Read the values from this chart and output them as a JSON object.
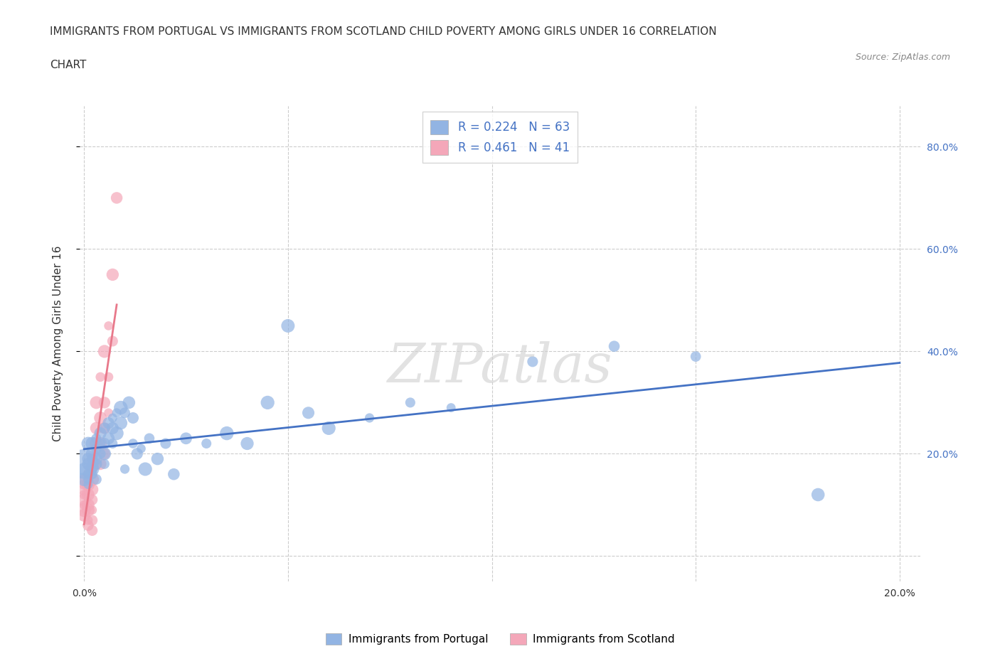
{
  "title_line1": "IMMIGRANTS FROM PORTUGAL VS IMMIGRANTS FROM SCOTLAND CHILD POVERTY AMONG GIRLS UNDER 16 CORRELATION",
  "title_line2": "CHART",
  "source": "Source: ZipAtlas.com",
  "ylabel": "Child Poverty Among Girls Under 16",
  "xlim": [
    -0.001,
    0.205
  ],
  "ylim": [
    -0.05,
    0.88
  ],
  "xticks": [
    0.0,
    0.05,
    0.1,
    0.15,
    0.2
  ],
  "yticks": [
    0.0,
    0.2,
    0.4,
    0.6,
    0.8
  ],
  "R_portugal": 0.224,
  "N_portugal": 63,
  "R_scotland": 0.461,
  "N_scotland": 41,
  "color_portugal": "#92b4e3",
  "color_scotland": "#f4a7b9",
  "line_color_portugal": "#4472c4",
  "line_color_scotland": "#e8788a",
  "legend_color_text": "#4472c4",
  "watermark": "ZIPatlas",
  "background_color": "#ffffff",
  "portugal_scatter": [
    [
      0.0,
      0.18
    ],
    [
      0.0,
      0.15
    ],
    [
      0.0,
      0.17
    ],
    [
      0.001,
      0.19
    ],
    [
      0.001,
      0.16
    ],
    [
      0.001,
      0.15
    ],
    [
      0.001,
      0.14
    ],
    [
      0.001,
      0.22
    ],
    [
      0.001,
      0.18
    ],
    [
      0.002,
      0.2
    ],
    [
      0.002,
      0.18
    ],
    [
      0.002,
      0.17
    ],
    [
      0.002,
      0.22
    ],
    [
      0.002,
      0.19
    ],
    [
      0.002,
      0.16
    ],
    [
      0.003,
      0.23
    ],
    [
      0.003,
      0.21
    ],
    [
      0.003,
      0.19
    ],
    [
      0.003,
      0.18
    ],
    [
      0.003,
      0.15
    ],
    [
      0.004,
      0.24
    ],
    [
      0.004,
      0.22
    ],
    [
      0.004,
      0.2
    ],
    [
      0.005,
      0.25
    ],
    [
      0.005,
      0.22
    ],
    [
      0.005,
      0.2
    ],
    [
      0.005,
      0.18
    ],
    [
      0.006,
      0.26
    ],
    [
      0.006,
      0.23
    ],
    [
      0.007,
      0.27
    ],
    [
      0.007,
      0.25
    ],
    [
      0.007,
      0.22
    ],
    [
      0.008,
      0.28
    ],
    [
      0.008,
      0.24
    ],
    [
      0.009,
      0.29
    ],
    [
      0.009,
      0.26
    ],
    [
      0.01,
      0.28
    ],
    [
      0.01,
      0.17
    ],
    [
      0.011,
      0.3
    ],
    [
      0.012,
      0.27
    ],
    [
      0.012,
      0.22
    ],
    [
      0.013,
      0.2
    ],
    [
      0.014,
      0.21
    ],
    [
      0.015,
      0.17
    ],
    [
      0.016,
      0.23
    ],
    [
      0.018,
      0.19
    ],
    [
      0.02,
      0.22
    ],
    [
      0.022,
      0.16
    ],
    [
      0.025,
      0.23
    ],
    [
      0.03,
      0.22
    ],
    [
      0.035,
      0.24
    ],
    [
      0.04,
      0.22
    ],
    [
      0.045,
      0.3
    ],
    [
      0.05,
      0.45
    ],
    [
      0.055,
      0.28
    ],
    [
      0.06,
      0.25
    ],
    [
      0.07,
      0.27
    ],
    [
      0.08,
      0.3
    ],
    [
      0.09,
      0.29
    ],
    [
      0.11,
      0.38
    ],
    [
      0.13,
      0.41
    ],
    [
      0.15,
      0.39
    ],
    [
      0.18,
      0.12
    ]
  ],
  "scotland_scatter": [
    [
      0.0,
      0.15
    ],
    [
      0.0,
      0.14
    ],
    [
      0.0,
      0.13
    ],
    [
      0.0,
      0.12
    ],
    [
      0.0,
      0.11
    ],
    [
      0.0,
      0.1
    ],
    [
      0.0,
      0.09
    ],
    [
      0.0,
      0.08
    ],
    [
      0.001,
      0.16
    ],
    [
      0.001,
      0.15
    ],
    [
      0.001,
      0.14
    ],
    [
      0.001,
      0.12
    ],
    [
      0.001,
      0.1
    ],
    [
      0.001,
      0.09
    ],
    [
      0.001,
      0.07
    ],
    [
      0.001,
      0.06
    ],
    [
      0.002,
      0.17
    ],
    [
      0.002,
      0.15
    ],
    [
      0.002,
      0.13
    ],
    [
      0.002,
      0.11
    ],
    [
      0.002,
      0.09
    ],
    [
      0.002,
      0.07
    ],
    [
      0.002,
      0.05
    ],
    [
      0.003,
      0.3
    ],
    [
      0.003,
      0.25
    ],
    [
      0.003,
      0.22
    ],
    [
      0.003,
      0.18
    ],
    [
      0.004,
      0.35
    ],
    [
      0.004,
      0.27
    ],
    [
      0.004,
      0.22
    ],
    [
      0.004,
      0.18
    ],
    [
      0.005,
      0.4
    ],
    [
      0.005,
      0.3
    ],
    [
      0.005,
      0.25
    ],
    [
      0.005,
      0.2
    ],
    [
      0.006,
      0.45
    ],
    [
      0.006,
      0.35
    ],
    [
      0.006,
      0.28
    ],
    [
      0.007,
      0.55
    ],
    [
      0.007,
      0.42
    ],
    [
      0.008,
      0.7
    ]
  ]
}
